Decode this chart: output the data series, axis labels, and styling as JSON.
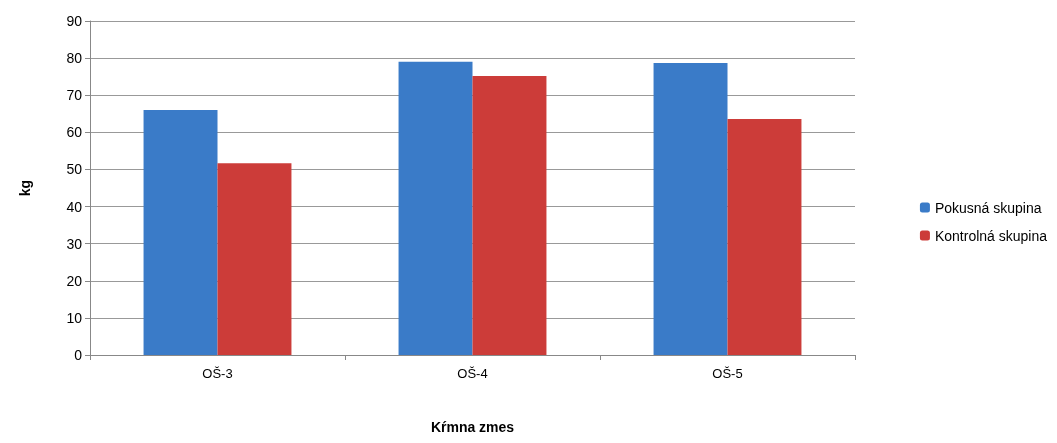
{
  "chart_data": {
    "type": "bar",
    "xlabel": "Kŕmna zmes",
    "ylabel": "kg",
    "categories": [
      "OŠ-3",
      "OŠ-4",
      "OŠ-5"
    ],
    "series": [
      {
        "name": "Pokusná skupina",
        "color": "#3a7bc8",
        "values": [
          66.0,
          79.0,
          78.7
        ]
      },
      {
        "name": "Kontrolná skupina",
        "color": "#cc3c39",
        "values": [
          51.7,
          75.2,
          63.6
        ]
      }
    ],
    "ylim": [
      0,
      90
    ],
    "yticks": [
      0,
      10,
      20,
      30,
      40,
      50,
      60,
      70,
      80,
      90
    ],
    "grid": "y",
    "legend": "right"
  }
}
